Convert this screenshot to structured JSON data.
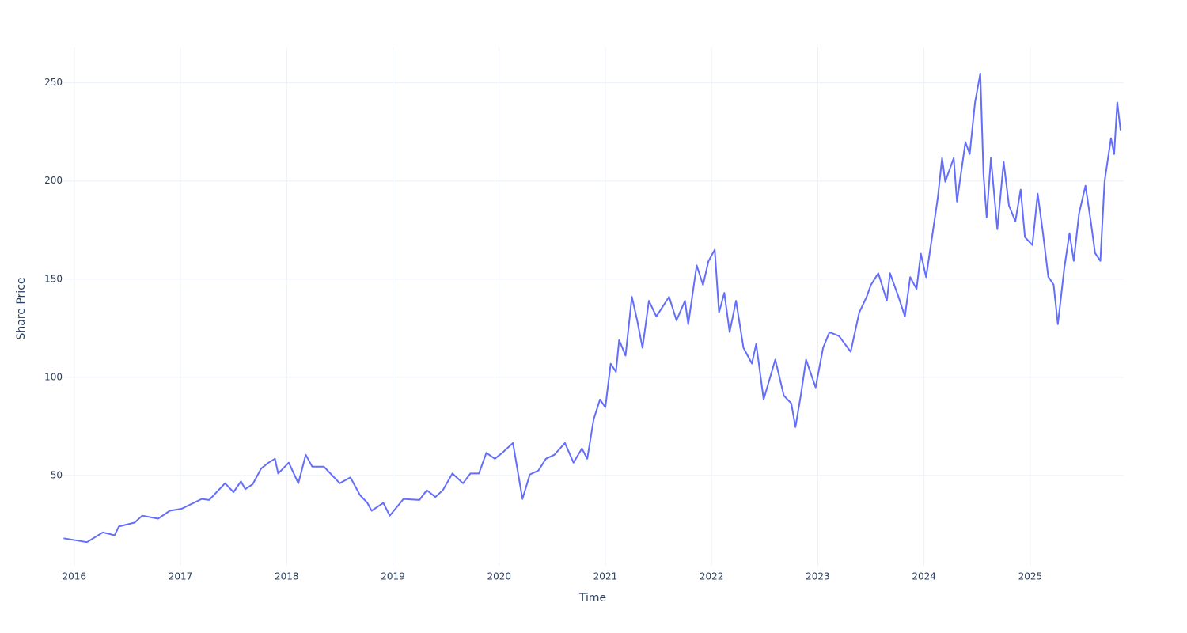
{
  "chart_data": {
    "type": "line",
    "x_label": "Time",
    "y_label": "Share Price",
    "x": [
      2015.9,
      2016.12,
      2016.27,
      2016.38,
      2016.42,
      2016.57,
      2016.64,
      2016.79,
      2016.9,
      2017.01,
      2017.2,
      2017.27,
      2017.42,
      2017.5,
      2017.57,
      2017.61,
      2017.68,
      2017.76,
      2017.83,
      2017.89,
      2017.92,
      2018.02,
      2018.11,
      2018.18,
      2018.24,
      2018.35,
      2018.5,
      2018.6,
      2018.69,
      2018.76,
      2018.8,
      2018.91,
      2018.97,
      2019.1,
      2019.25,
      2019.32,
      2019.4,
      2019.47,
      2019.56,
      2019.66,
      2019.73,
      2019.81,
      2019.88,
      2019.96,
      2020.03,
      2020.13,
      2020.22,
      2020.29,
      2020.37,
      2020.44,
      2020.52,
      2020.62,
      2020.7,
      2020.78,
      2020.83,
      2020.89,
      2020.95,
      2021.0,
      2021.05,
      2021.1,
      2021.13,
      2021.19,
      2021.25,
      2021.3,
      2021.35,
      2021.41,
      2021.48,
      2021.6,
      2021.67,
      2021.75,
      2021.78,
      2021.86,
      2021.92,
      2021.97,
      2022.03,
      2022.07,
      2022.12,
      2022.17,
      2022.23,
      2022.3,
      2022.38,
      2022.42,
      2022.49,
      2022.6,
      2022.68,
      2022.75,
      2022.79,
      2022.84,
      2022.89,
      2022.98,
      2023.05,
      2023.11,
      2023.2,
      2023.31,
      2023.39,
      2023.46,
      2023.5,
      2023.57,
      2023.65,
      2023.68,
      2023.76,
      2023.82,
      2023.87,
      2023.93,
      2023.97,
      2024.02,
      2024.08,
      2024.13,
      2024.17,
      2024.2,
      2024.28,
      2024.31,
      2024.39,
      2024.43,
      2024.48,
      2024.53,
      2024.56,
      2024.59,
      2024.63,
      2024.69,
      2024.75,
      2024.8,
      2024.86,
      2024.91,
      2024.95,
      2025.02,
      2025.07,
      2025.12,
      2025.17,
      2025.22,
      2025.26,
      2025.32,
      2025.37,
      2025.41,
      2025.46,
      2025.52,
      2025.57,
      2025.61,
      2025.66,
      2025.7,
      2025.76,
      2025.79,
      2025.82,
      2025.85
    ],
    "series": [
      {
        "name": "Share Price",
        "color": "#636efa",
        "values": [
          18,
          16,
          21,
          19.5,
          24,
          26,
          29.5,
          28,
          32,
          33,
          38,
          37.5,
          46,
          41.5,
          47,
          43,
          45.5,
          53.5,
          56.5,
          58.5,
          51,
          56.5,
          46,
          60.5,
          54.5,
          54.5,
          46,
          49,
          40,
          36,
          32,
          36,
          29.5,
          38,
          37.5,
          42.5,
          39,
          42.5,
          51,
          46,
          51,
          51,
          61.5,
          58.5,
          61.5,
          66.5,
          38,
          50.5,
          52.5,
          58.5,
          60.5,
          66.5,
          56.5,
          63.7,
          58.5,
          78.6,
          88.7,
          84.7,
          106.9,
          102.8,
          119,
          111,
          141,
          129,
          115,
          139,
          131,
          141,
          129,
          139,
          127,
          157,
          147,
          159,
          165,
          133,
          143,
          123,
          139,
          115,
          107,
          117,
          88.7,
          109,
          90.7,
          86.7,
          74.6,
          90.7,
          109,
          94.8,
          115,
          123,
          121,
          113,
          133,
          141,
          147,
          153,
          139,
          153,
          141,
          131,
          151,
          145,
          163,
          151,
          173,
          191.5,
          211.7,
          199.6,
          211.7,
          189.5,
          219.8,
          213.7,
          240,
          254.8,
          203.6,
          181.5,
          211.7,
          175.4,
          209.7,
          187.5,
          179.4,
          195.6,
          171.4,
          167.3,
          193.5,
          173.4,
          151.2,
          147.2,
          127,
          155.2,
          173.4,
          159.3,
          183.5,
          197.6,
          179.4,
          163.3,
          159.3,
          199.6,
          221.8,
          213.7,
          240,
          225.8
        ]
      }
    ],
    "xlim": [
      2015.86,
      2025.88
    ],
    "xticks": [
      2016,
      2017,
      2018,
      2019,
      2020,
      2021,
      2022,
      2023,
      2024,
      2025
    ],
    "ylim": [
      4,
      268
    ],
    "yticks": [
      50,
      100,
      150,
      200,
      250
    ],
    "grid": true
  }
}
